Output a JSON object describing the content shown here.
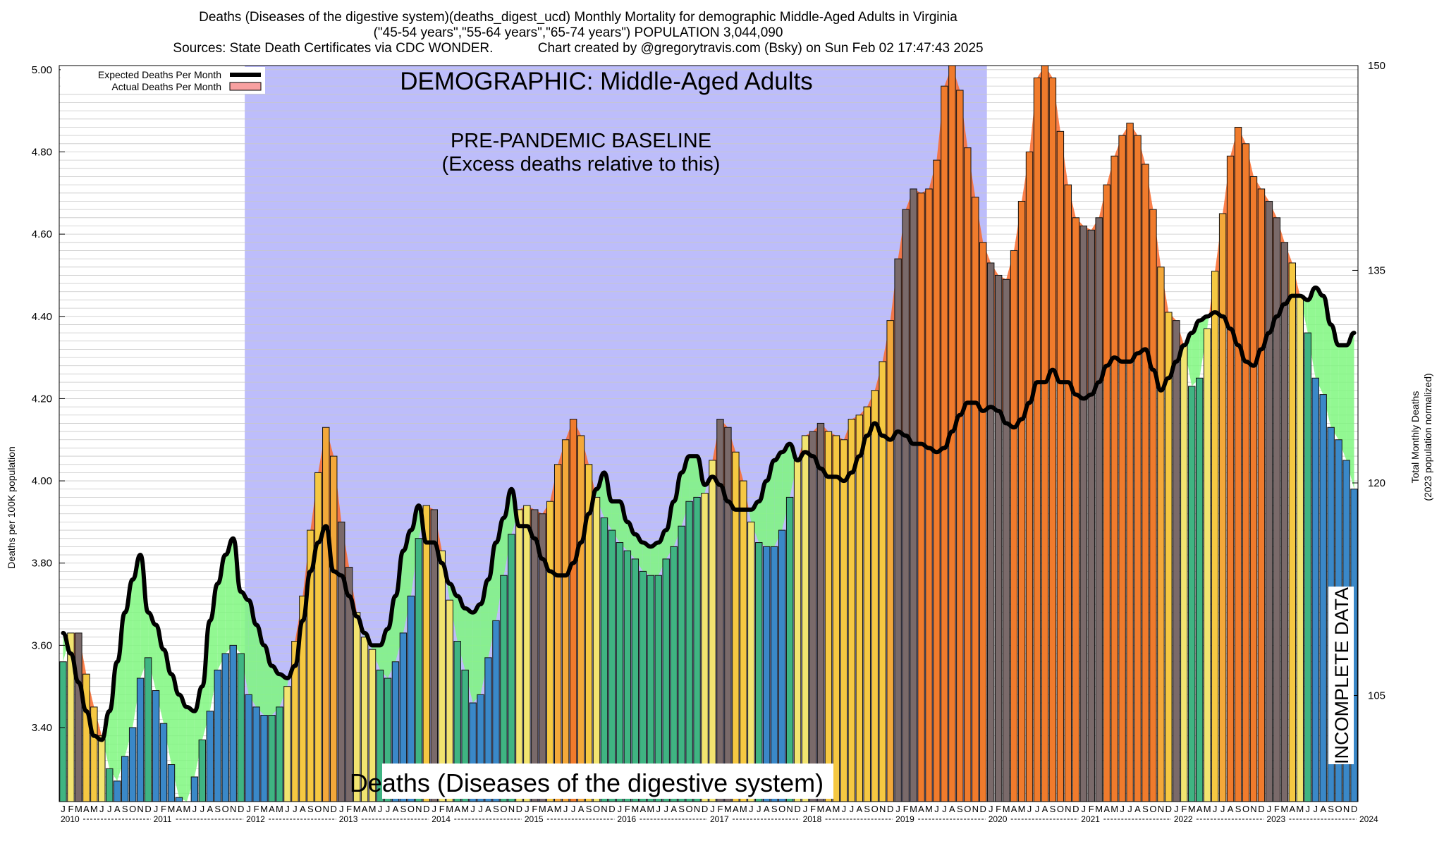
{
  "title_lines": [
    "Deaths (Diseases of the digestive system)(deaths_digest_ucd) Monthly Mortality for demographic Middle-Aged Adults in Virginia",
    "(\"45-54 years\",\"55-64 years\",\"65-74 years\") POPULATION 3,044,090",
    "Sources: State Death Certificates via CDC WONDER.            Chart created by @gregorytravis.com (Bsky) on Sun Feb 02 17:47:43 2025"
  ],
  "annotations": {
    "demographic": "DEMOGRAPHIC: Middle-Aged Adults",
    "baseline_line1": "PRE-PANDEMIC BASELINE",
    "baseline_line2": "(Excess deaths relative to this)",
    "cause": "Deaths (Diseases of the digestive system)",
    "incomplete": "INCOMPLETE DATA"
  },
  "colors": {
    "baseline_region": "#bdbdfb",
    "excess_fill": "#fa6a2a",
    "deficit_fill": "#7ff77f",
    "expected_line": "#000000",
    "season_palette": [
      "#3a88c8",
      "#2e9f8c",
      "#3fb482",
      "#f2e470",
      "#f5c842",
      "#f3a83a",
      "#f07b2c"
    ]
  },
  "chart_data": {
    "type": "bar",
    "title": "Deaths (Diseases of the digestive system)(deaths_digest_ucd) Monthly Mortality for demographic Middle-Aged Adults in Virginia",
    "ylabel": "Deaths per 100K population",
    "y2label_line1": "Total Monthly Deaths",
    "y2label_line2": "(2023 population normalized)",
    "ylim": [
      3.22,
      5.01
    ],
    "y_ticks": [
      "3.40",
      "3.60",
      "3.80",
      "4.00",
      "4.20",
      "4.40",
      "4.60",
      "4.80",
      "5.00"
    ],
    "y2_ticks": [
      "105",
      "120",
      "135",
      "150"
    ],
    "grid": true,
    "legend_position": "top-left",
    "legend": [
      "Expected Deaths Per Month",
      "Actual Deaths Per Month"
    ],
    "month_letters": [
      "J",
      "F",
      "M",
      "A",
      "M",
      "J",
      "J",
      "A",
      "S",
      "O",
      "N",
      "D"
    ],
    "years": [
      "2010",
      "2011",
      "2012",
      "2013",
      "2014",
      "2015",
      "2016",
      "2017",
      "2018",
      "2019",
      "2020",
      "2021",
      "2022",
      "2023",
      "2024"
    ],
    "baseline_period": [
      "2012-01",
      "2019-12"
    ],
    "incomplete_from": "2024-07",
    "series": [
      {
        "name": "Actual Deaths Per Month",
        "values": [
          3.56,
          3.63,
          3.63,
          3.53,
          3.45,
          3.38,
          3.3,
          3.27,
          3.33,
          3.4,
          3.52,
          3.57,
          3.49,
          3.41,
          3.31,
          3.23,
          3.22,
          3.28,
          3.37,
          3.44,
          3.54,
          3.58,
          3.6,
          3.58,
          3.48,
          3.45,
          3.43,
          3.43,
          3.45,
          3.5,
          3.61,
          3.72,
          3.88,
          4.02,
          4.13,
          4.06,
          3.9,
          3.79,
          3.68,
          3.62,
          3.59,
          3.54,
          3.52,
          3.56,
          3.63,
          3.72,
          3.86,
          3.94,
          3.93,
          3.83,
          3.71,
          3.61,
          3.54,
          3.46,
          3.48,
          3.57,
          3.66,
          3.77,
          3.87,
          3.93,
          3.94,
          3.93,
          3.92,
          3.95,
          4.04,
          4.1,
          4.15,
          4.11,
          4.04,
          3.96,
          3.91,
          3.88,
          3.85,
          3.83,
          3.81,
          3.78,
          3.77,
          3.77,
          3.81,
          3.84,
          3.89,
          3.95,
          3.96,
          3.97,
          4.05,
          4.15,
          4.13,
          4.07,
          4.0,
          3.9,
          3.85,
          3.84,
          3.84,
          3.88,
          3.96,
          4.05,
          4.11,
          4.12,
          4.14,
          4.12,
          4.11,
          4.1,
          4.15,
          4.16,
          4.18,
          4.22,
          4.29,
          4.39,
          4.54,
          4.66,
          4.71,
          4.7,
          4.71,
          4.78,
          4.96,
          5.01,
          4.95,
          4.81,
          4.69,
          4.58,
          4.53,
          4.5,
          4.49,
          4.56,
          4.68,
          4.8,
          4.98,
          5.01,
          4.98,
          4.85,
          4.72,
          4.64,
          4.62,
          4.61,
          4.64,
          4.72,
          4.79,
          4.84,
          4.87,
          4.84,
          4.77,
          4.66,
          4.52,
          4.41,
          4.39,
          4.33,
          4.23,
          4.25,
          4.37,
          4.51,
          4.65,
          4.79,
          4.86,
          4.82,
          4.74,
          4.71,
          4.68,
          4.64,
          4.58,
          4.53,
          4.45,
          4.36,
          4.25,
          4.21,
          4.13,
          4.1,
          4.05,
          3.98
        ]
      },
      {
        "name": "Expected Deaths Per Month",
        "values": [
          3.63,
          3.58,
          3.51,
          3.44,
          3.38,
          3.37,
          3.44,
          3.56,
          3.68,
          3.76,
          3.82,
          3.68,
          3.65,
          3.59,
          3.53,
          3.48,
          3.45,
          3.44,
          3.5,
          3.66,
          3.75,
          3.82,
          3.86,
          3.73,
          3.71,
          3.65,
          3.6,
          3.55,
          3.53,
          3.52,
          3.55,
          3.66,
          3.78,
          3.85,
          3.89,
          3.78,
          3.77,
          3.72,
          3.67,
          3.63,
          3.6,
          3.6,
          3.64,
          3.72,
          3.83,
          3.88,
          3.94,
          3.85,
          3.85,
          3.8,
          3.75,
          3.72,
          3.69,
          3.68,
          3.7,
          3.76,
          3.85,
          3.91,
          3.98,
          3.89,
          3.89,
          3.86,
          3.81,
          3.78,
          3.77,
          3.77,
          3.8,
          3.85,
          3.92,
          3.98,
          4.02,
          3.95,
          3.95,
          3.9,
          3.87,
          3.85,
          3.84,
          3.85,
          3.88,
          3.95,
          4.02,
          4.06,
          4.06,
          3.99,
          4.01,
          3.99,
          3.95,
          3.93,
          3.93,
          3.93,
          3.95,
          4.0,
          4.05,
          4.07,
          4.09,
          4.05,
          4.07,
          4.06,
          4.03,
          4.01,
          4.01,
          4.0,
          4.02,
          4.06,
          4.11,
          4.14,
          4.11,
          4.1,
          4.12,
          4.11,
          4.09,
          4.09,
          4.08,
          4.07,
          4.08,
          4.12,
          4.16,
          4.19,
          4.19,
          4.17,
          4.18,
          4.17,
          4.14,
          4.13,
          4.15,
          4.19,
          4.24,
          4.24,
          4.27,
          4.24,
          4.24,
          4.21,
          4.2,
          4.21,
          4.24,
          4.28,
          4.3,
          4.29,
          4.29,
          4.31,
          4.32,
          4.27,
          4.22,
          4.25,
          4.29,
          4.33,
          4.36,
          4.39,
          4.4,
          4.41,
          4.4,
          4.37,
          4.33,
          4.29,
          4.28,
          4.32,
          4.36,
          4.4,
          4.43,
          4.45,
          4.45,
          4.44,
          4.47,
          4.45,
          4.38,
          4.33,
          4.33,
          4.36
        ]
      }
    ]
  }
}
